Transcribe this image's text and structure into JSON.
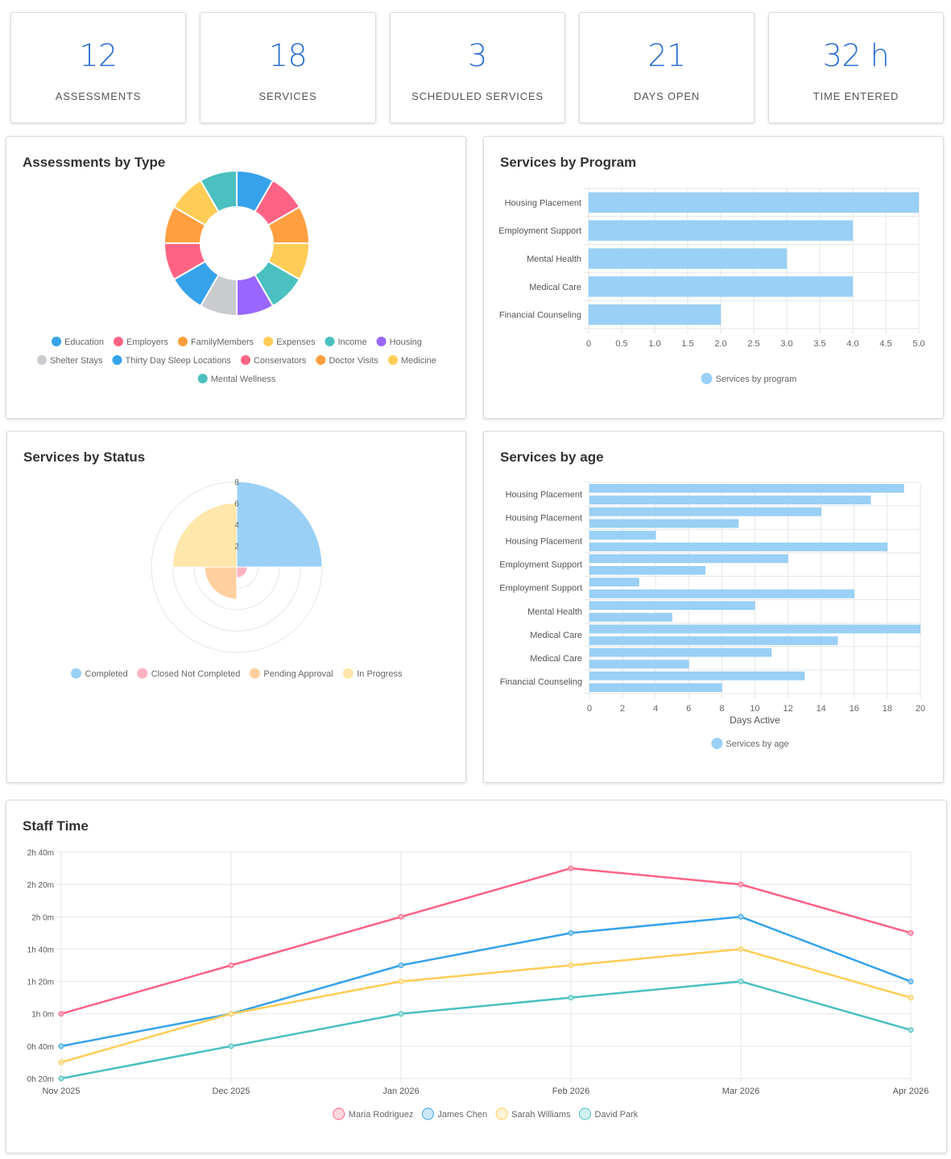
{
  "stats": [
    {
      "value": "12",
      "label": "ASSESSMENTS"
    },
    {
      "value": "18",
      "label": "SERVICES"
    },
    {
      "value": "3",
      "label": "SCHEDULED SERVICES"
    },
    {
      "value": "21",
      "label": "DAYS OPEN"
    },
    {
      "value": "32 h",
      "label": "TIME ENTERED"
    }
  ],
  "assessments_by_type": {
    "title": "Assessments by Type",
    "chart_data": {
      "type": "pie",
      "labels": [
        "Education",
        "Employers",
        "FamilyMembers",
        "Expenses",
        "Income",
        "Housing",
        "Shelter Stays",
        "Thirty Day Sleep Locations",
        "Conservators",
        "Doctor Visits",
        "Medicine",
        "Mental Wellness"
      ],
      "values": [
        1,
        1,
        1,
        1,
        1,
        1,
        1,
        1,
        1,
        1,
        1,
        1
      ],
      "colors": [
        "#36a2eb",
        "#ff6384",
        "#ff9f40",
        "#ffcd56",
        "#4bc0c0",
        "#9966ff",
        "#c9cbcf",
        "#36a2eb",
        "#ff6384",
        "#ff9f40",
        "#ffcd56",
        "#4bc0c0"
      ],
      "legend": "bottom"
    }
  },
  "services_by_program": {
    "title": "Services by Program",
    "chart_data": {
      "type": "bar",
      "orientation": "horizontal",
      "categories": [
        "Housing Placement",
        "Employment Support",
        "Mental Health",
        "Medical Care",
        "Financial Counseling"
      ],
      "series": [
        {
          "name": "Services by program",
          "values": [
            5,
            4,
            3,
            4,
            2
          ]
        }
      ],
      "xlim": [
        0,
        5
      ],
      "xticks": [
        "0",
        "0.5",
        "1.0",
        "1.5",
        "2.0",
        "2.5",
        "3.0",
        "3.5",
        "4.0",
        "4.5",
        "5.0"
      ],
      "color": "#9ad0f5",
      "legend": "bottom"
    }
  },
  "services_by_status": {
    "title": "Services by Status",
    "chart_data": {
      "type": "polarArea",
      "labels": [
        "Completed",
        "Closed Not Completed",
        "Pending Approval",
        "In Progress"
      ],
      "values": [
        8,
        1,
        3,
        6
      ],
      "colors": [
        "#9ad0f5",
        "#ffb1c1",
        "#ffcf9f",
        "#ffe6aa"
      ],
      "rmax": 8,
      "rticks": [
        "2",
        "4",
        "6",
        "8"
      ],
      "legend": "bottom"
    }
  },
  "services_by_age": {
    "title": "Services by age",
    "chart_data": {
      "type": "bar",
      "orientation": "horizontal",
      "categories": [
        "Housing Placement",
        "",
        "Housing Placement",
        "",
        "Housing Placement",
        "",
        "Employment Support",
        "",
        "Employment Support",
        "",
        "Mental Health",
        "",
        "Medical Care",
        "",
        "Medical Care",
        "",
        "Financial Counseling",
        ""
      ],
      "series": [
        {
          "name": "Services by age",
          "values": [
            19,
            17,
            14,
            9,
            4,
            18,
            12,
            7,
            3,
            16,
            10,
            5,
            20,
            15,
            11,
            6,
            13,
            8
          ]
        }
      ],
      "xlabel": "Days Active",
      "xlim": [
        0,
        20
      ],
      "xticks": [
        "0",
        "2",
        "4",
        "6",
        "8",
        "10",
        "12",
        "14",
        "16",
        "18",
        "20"
      ],
      "color": "#9ad0f5",
      "legend": "bottom"
    }
  },
  "staff_time": {
    "title": "Staff Time",
    "chart_data": {
      "type": "line",
      "x": [
        "Nov 2025",
        "Dec 2025",
        "Jan 2026",
        "Feb 2026",
        "Mar 2026",
        "Apr 2026"
      ],
      "yticks": [
        "0h 20m",
        "0h 40m",
        "1h 0m",
        "1h 20m",
        "1h 40m",
        "2h 0m",
        "2h 20m",
        "2h 40m"
      ],
      "ylim_minutes": [
        20,
        160
      ],
      "series": [
        {
          "name": "Maria Rodriguez",
          "color": "#ff6384",
          "values_minutes": [
            60,
            90,
            120,
            150,
            140,
            110
          ]
        },
        {
          "name": "James Chen",
          "color": "#36a2eb",
          "values_minutes": [
            40,
            60,
            90,
            110,
            120,
            80
          ]
        },
        {
          "name": "Sarah Williams",
          "color": "#ffcd56",
          "values_minutes": [
            30,
            60,
            80,
            90,
            100,
            70
          ]
        },
        {
          "name": "David Park",
          "color": "#4bc0c0",
          "values_minutes": [
            20,
            40,
            60,
            70,
            80,
            50
          ]
        }
      ],
      "legend": "bottom"
    }
  }
}
